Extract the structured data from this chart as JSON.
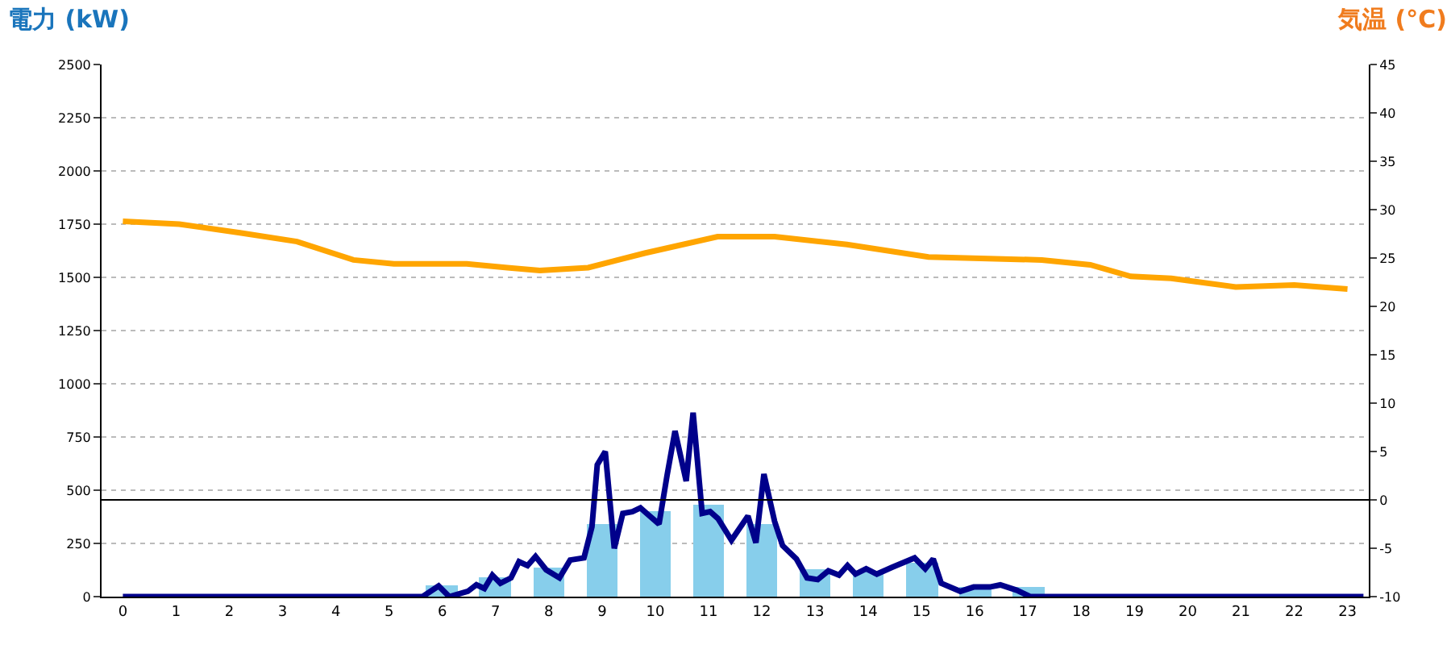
{
  "chart_data": {
    "type": "bar",
    "ylabel": "電力 (kW)",
    "y2label": "気温 (°C)",
    "x": [
      0,
      1,
      2,
      3,
      4,
      5,
      6,
      7,
      8,
      9,
      10,
      11,
      12,
      13,
      14,
      15,
      16,
      17,
      18,
      19,
      20,
      21,
      22,
      23
    ],
    "series": [
      {
        "color": "#87ceeb",
        "values": [
          0,
          0,
          0,
          0,
          0,
          0,
          50,
          90,
          140,
          340,
          400,
          430,
          340,
          130,
          125,
          160,
          45,
          45,
          0,
          0,
          0,
          0,
          0,
          0
        ]
      },
      {
        "type": "line",
        "color": "#00008b",
        "x": [
          0,
          5.63,
          5.93,
          6.13,
          6.48,
          6.64,
          6.79,
          6.94,
          7.09,
          7.29,
          7.44,
          7.6,
          7.75,
          7.95,
          8.2,
          8.4,
          8.66,
          8.81,
          8.91,
          9.06,
          9.23,
          9.39,
          9.57,
          9.72,
          9.87,
          10.07,
          10.22,
          10.37,
          10.58,
          10.71,
          10.88,
          11.03,
          11.18,
          11.43,
          11.74,
          11.89,
          12.04,
          12.24,
          12.39,
          12.65,
          12.85,
          13.05,
          13.25,
          13.45,
          13.61,
          13.76,
          13.96,
          14.16,
          14.46,
          14.87,
          15.07,
          15.22,
          15.37,
          15.73,
          15.98,
          16.28,
          16.48,
          16.79,
          17.04,
          23.3
        ],
        "values": [
          0,
          0,
          50,
          0,
          25,
          56,
          38,
          101,
          63,
          88,
          164,
          146,
          189,
          126,
          88,
          172,
          182,
          328,
          619,
          682,
          227,
          391,
          399,
          417,
          384,
          341,
          568,
          778,
          543,
          864,
          391,
          399,
          366,
          265,
          379,
          253,
          576,
          354,
          240,
          177,
          88,
          80,
          121,
          101,
          146,
          106,
          131,
          106,
          139,
          182,
          131,
          177,
          63,
          25,
          45,
          45,
          55,
          30,
          0,
          0
        ]
      },
      {
        "type": "line",
        "color": "#ffa500",
        "axis": "y2",
        "x": [
          0,
          1.06,
          2.2,
          3.27,
          4.33,
          5.09,
          6.46,
          7.22,
          7.83,
          8.74,
          9.8,
          11.17,
          12.24,
          13.6,
          15.13,
          17.26,
          18.17,
          18.93,
          19.69,
          20.9,
          22,
          23
        ],
        "values": [
          28.8,
          28.5,
          27.6,
          26.7,
          24.8,
          24.4,
          24.4,
          24.0,
          23.7,
          24.0,
          25.5,
          27.2,
          27.2,
          26.4,
          25.1,
          24.8,
          24.3,
          23.1,
          22.9,
          22.0,
          22.2,
          21.8
        ]
      }
    ],
    "xlim": [
      -0.4,
      23.4
    ],
    "xticks": [
      0,
      1,
      2,
      3,
      4,
      5,
      6,
      7,
      8,
      9,
      10,
      11,
      12,
      13,
      14,
      15,
      16,
      17,
      18,
      19,
      20,
      21,
      22,
      23
    ],
    "ylim": [
      0,
      2500
    ],
    "yticks": [
      0,
      250,
      500,
      750,
      1000,
      1250,
      1500,
      1750,
      2000,
      2250,
      2500
    ],
    "y2lim": [
      -10,
      45
    ],
    "y2ticks": [
      -10,
      -5,
      0,
      5,
      10,
      15,
      20,
      25,
      30,
      35,
      40,
      45
    ],
    "ref_lines": [
      {
        "axis": "y2",
        "value": 0,
        "color": "#000000"
      }
    ],
    "grid": "y"
  }
}
